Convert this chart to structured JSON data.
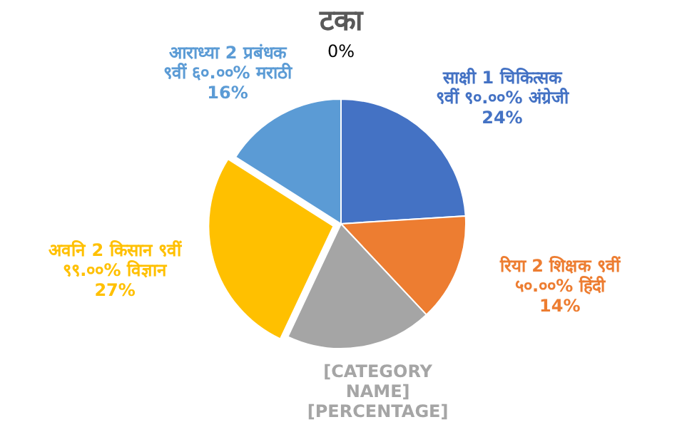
{
  "chart_data": {
    "type": "pie",
    "title": "टका",
    "categories": [
      null,
      "साक्षी 1 चिकित्सक ९वीं ९०.००% अंग्रेजी",
      "रिया 2 शिक्षक ९वीं ५०.००% हिंदी",
      "[CATEGORY NAME] [PERCENTAGE]",
      "अवनि 2 किसान ९वीं ९९.००% विज्ञान",
      "आराध्या 2 प्रबंधक ९वीं ६०.००% मराठी"
    ],
    "values": [
      0,
      24,
      14,
      19,
      27,
      16
    ],
    "value_labels": [
      "0%",
      "24%",
      "14%",
      null,
      "27%",
      "16%"
    ],
    "colors": [
      "#a5a5a5",
      "#4472c4",
      "#ed7d31",
      "#a5a5a5",
      "#ffc000",
      "#5b9bd5"
    ]
  }
}
